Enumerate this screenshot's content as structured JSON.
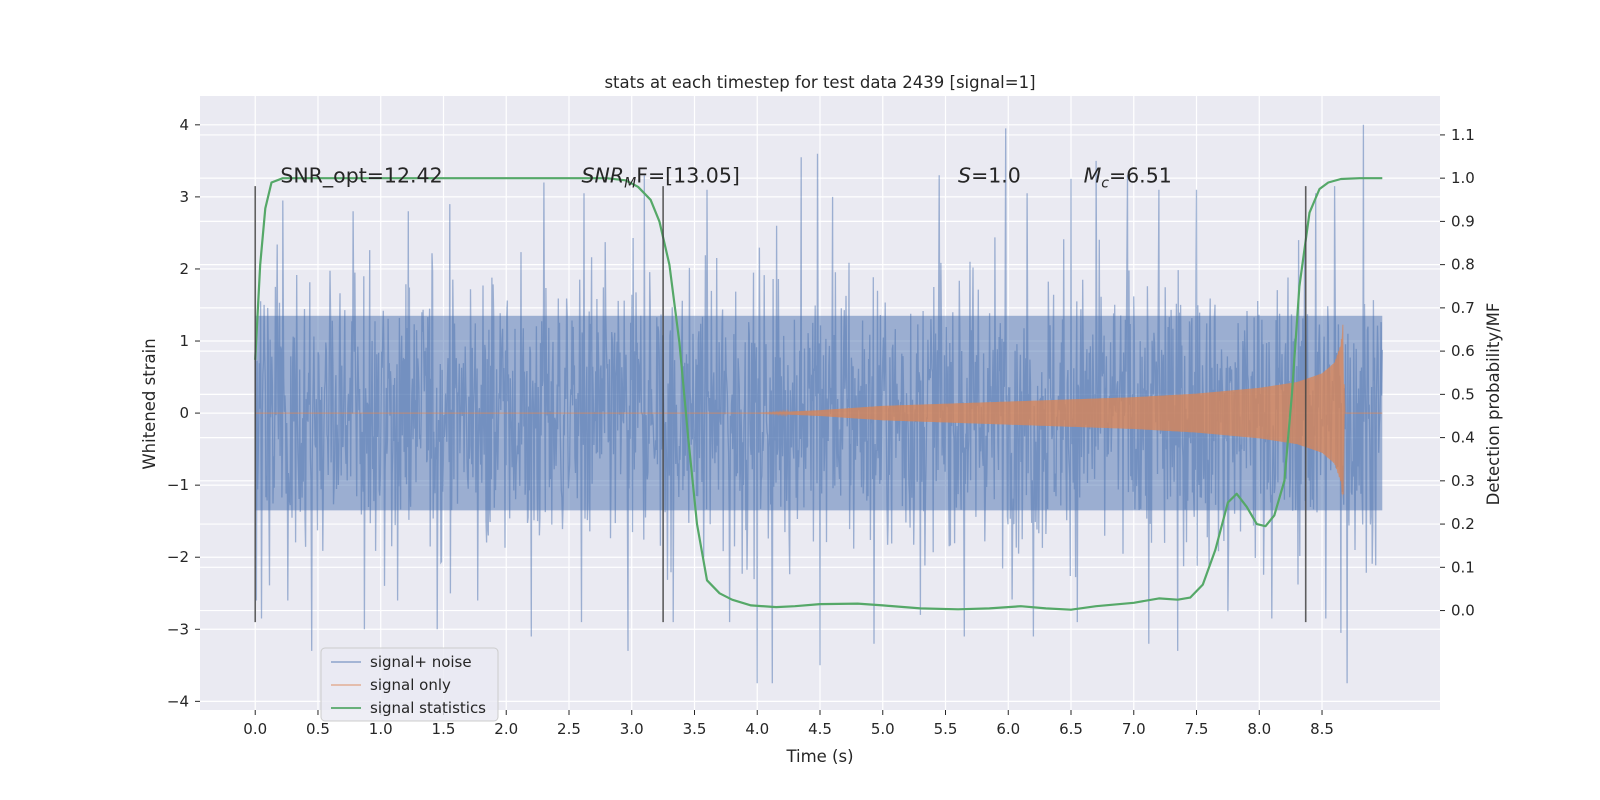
{
  "chart_data": {
    "type": "line",
    "title": "stats at each timestep for test data 2439 [signal=1]",
    "xlabel": "Time (s)",
    "ylabel": "Whitened strain",
    "y2label": "Detection probability/MF",
    "xlim": [
      -0.44,
      9.44
    ],
    "ylim": [
      -4.12,
      4.4
    ],
    "y2lim": [
      -0.23,
      1.19
    ],
    "xticks": [
      "0.0",
      "0.5",
      "1.0",
      "1.5",
      "2.0",
      "2.5",
      "3.0",
      "3.5",
      "4.0",
      "4.5",
      "5.0",
      "5.5",
      "6.0",
      "6.5",
      "7.0",
      "7.5",
      "8.0",
      "8.5"
    ],
    "yticks": [
      "4",
      "3",
      "2",
      "1",
      "0",
      "−1",
      "−2",
      "−3",
      "−4"
    ],
    "y2ticks": [
      "1.1",
      "1.0",
      "0.9",
      "0.8",
      "0.7",
      "0.6",
      "0.5",
      "0.4",
      "0.3",
      "0.2",
      "0.1",
      "0.0"
    ],
    "grid": true,
    "legend_position": "lower-left",
    "annotations": [
      {
        "text": "SNR_opt=12.42",
        "x": 0.2,
        "y": 3.2
      },
      {
        "text": "SNR",
        "sub": "M",
        "suffix": "F=[13.05]",
        "italic": true,
        "x": 2.6,
        "y": 3.2
      },
      {
        "text": "S",
        "suffix": "=1.0",
        "italic": true,
        "x": 5.6,
        "y": 3.2
      },
      {
        "text": "M",
        "sub": "c",
        "suffix": "=6.51",
        "italic": true,
        "x": 6.6,
        "y": 3.2
      }
    ],
    "vlines": [
      {
        "x": 0.0,
        "ymin": -2.9,
        "ymax": 3.15
      },
      {
        "x": 3.25,
        "ymin": -2.9,
        "ymax": 3.15
      },
      {
        "x": 8.37,
        "ymin": -2.9,
        "ymax": 3.15
      }
    ],
    "series": [
      {
        "name": "signal+ noise",
        "color": "#4c72b0",
        "kind": "noise_band",
        "x_range": [
          0.0,
          8.98
        ],
        "core_amplitude": 1.35,
        "peaks_high": [
          [
            0.22,
            2.95
          ],
          [
            0.78,
            2.8
          ],
          [
            1.22,
            2.8
          ],
          [
            1.55,
            2.9
          ],
          [
            2.3,
            3.2
          ],
          [
            2.62,
            3.05
          ],
          [
            3.1,
            3.3
          ],
          [
            3.6,
            3.1
          ],
          [
            4.35,
            3.55
          ],
          [
            4.48,
            3.6
          ],
          [
            4.6,
            3.0
          ],
          [
            5.45,
            3.3
          ],
          [
            5.98,
            3.95
          ],
          [
            6.15,
            3.05
          ],
          [
            6.5,
            3.25
          ],
          [
            6.7,
            3.5
          ],
          [
            6.95,
            3.3
          ],
          [
            7.2,
            3.1
          ],
          [
            7.5,
            3.1
          ],
          [
            8.45,
            3.05
          ],
          [
            8.6,
            3.15
          ],
          [
            8.83,
            4.0
          ]
        ],
        "peaks_low": [
          [
            0.05,
            -2.85
          ],
          [
            0.45,
            -3.3
          ],
          [
            0.87,
            -3.0
          ],
          [
            1.45,
            -3.0
          ],
          [
            2.2,
            -3.1
          ],
          [
            2.6,
            -2.9
          ],
          [
            2.97,
            -3.3
          ],
          [
            3.33,
            -2.9
          ],
          [
            3.78,
            -2.9
          ],
          [
            4.0,
            -3.75
          ],
          [
            4.12,
            -3.75
          ],
          [
            4.5,
            -3.5
          ],
          [
            4.93,
            -3.2
          ],
          [
            5.3,
            -2.8
          ],
          [
            5.65,
            -3.1
          ],
          [
            6.2,
            -3.1
          ],
          [
            6.55,
            -2.9
          ],
          [
            7.12,
            -3.2
          ],
          [
            7.35,
            -3.3
          ],
          [
            7.75,
            -2.75
          ],
          [
            8.1,
            -2.85
          ],
          [
            8.53,
            -2.85
          ],
          [
            8.65,
            -3.05
          ],
          [
            8.7,
            -3.75
          ]
        ]
      },
      {
        "name": "signal only",
        "color": "#dd8452",
        "kind": "chirp_envelope",
        "x_range": [
          0.0,
          8.98
        ],
        "envelope": [
          [
            0.0,
            0.0
          ],
          [
            4.0,
            0.0
          ],
          [
            4.5,
            0.04
          ],
          [
            5.0,
            0.1
          ],
          [
            6.0,
            0.16
          ],
          [
            7.0,
            0.22
          ],
          [
            7.5,
            0.27
          ],
          [
            8.0,
            0.35
          ],
          [
            8.3,
            0.43
          ],
          [
            8.5,
            0.55
          ],
          [
            8.6,
            0.7
          ],
          [
            8.65,
            0.95
          ],
          [
            8.67,
            1.3
          ],
          [
            8.68,
            0.0
          ],
          [
            8.98,
            0.0
          ]
        ]
      },
      {
        "name": "signal statistics",
        "color": "#55a868",
        "kind": "line",
        "axis": "right",
        "points": [
          [
            0.0,
            0.58
          ],
          [
            0.04,
            0.8
          ],
          [
            0.08,
            0.93
          ],
          [
            0.13,
            0.99
          ],
          [
            0.22,
            1.0
          ],
          [
            2.8,
            1.0
          ],
          [
            2.95,
            0.995
          ],
          [
            3.05,
            0.98
          ],
          [
            3.15,
            0.95
          ],
          [
            3.22,
            0.9
          ],
          [
            3.3,
            0.8
          ],
          [
            3.38,
            0.62
          ],
          [
            3.45,
            0.4
          ],
          [
            3.52,
            0.2
          ],
          [
            3.6,
            0.07
          ],
          [
            3.7,
            0.04
          ],
          [
            3.8,
            0.025
          ],
          [
            3.95,
            0.012
          ],
          [
            4.15,
            0.008
          ],
          [
            4.3,
            0.01
          ],
          [
            4.5,
            0.015
          ],
          [
            4.8,
            0.016
          ],
          [
            5.0,
            0.012
          ],
          [
            5.3,
            0.005
          ],
          [
            5.6,
            0.003
          ],
          [
            5.85,
            0.005
          ],
          [
            6.1,
            0.01
          ],
          [
            6.3,
            0.005
          ],
          [
            6.5,
            0.002
          ],
          [
            6.7,
            0.01
          ],
          [
            7.0,
            0.018
          ],
          [
            7.2,
            0.028
          ],
          [
            7.35,
            0.025
          ],
          [
            7.45,
            0.03
          ],
          [
            7.55,
            0.06
          ],
          [
            7.65,
            0.14
          ],
          [
            7.75,
            0.25
          ],
          [
            7.82,
            0.27
          ],
          [
            7.9,
            0.24
          ],
          [
            7.98,
            0.2
          ],
          [
            8.05,
            0.195
          ],
          [
            8.12,
            0.22
          ],
          [
            8.2,
            0.3
          ],
          [
            8.26,
            0.5
          ],
          [
            8.32,
            0.75
          ],
          [
            8.4,
            0.92
          ],
          [
            8.48,
            0.975
          ],
          [
            8.55,
            0.99
          ],
          [
            8.65,
            0.998
          ],
          [
            8.8,
            1.0
          ],
          [
            8.98,
            1.0
          ]
        ]
      }
    ]
  }
}
